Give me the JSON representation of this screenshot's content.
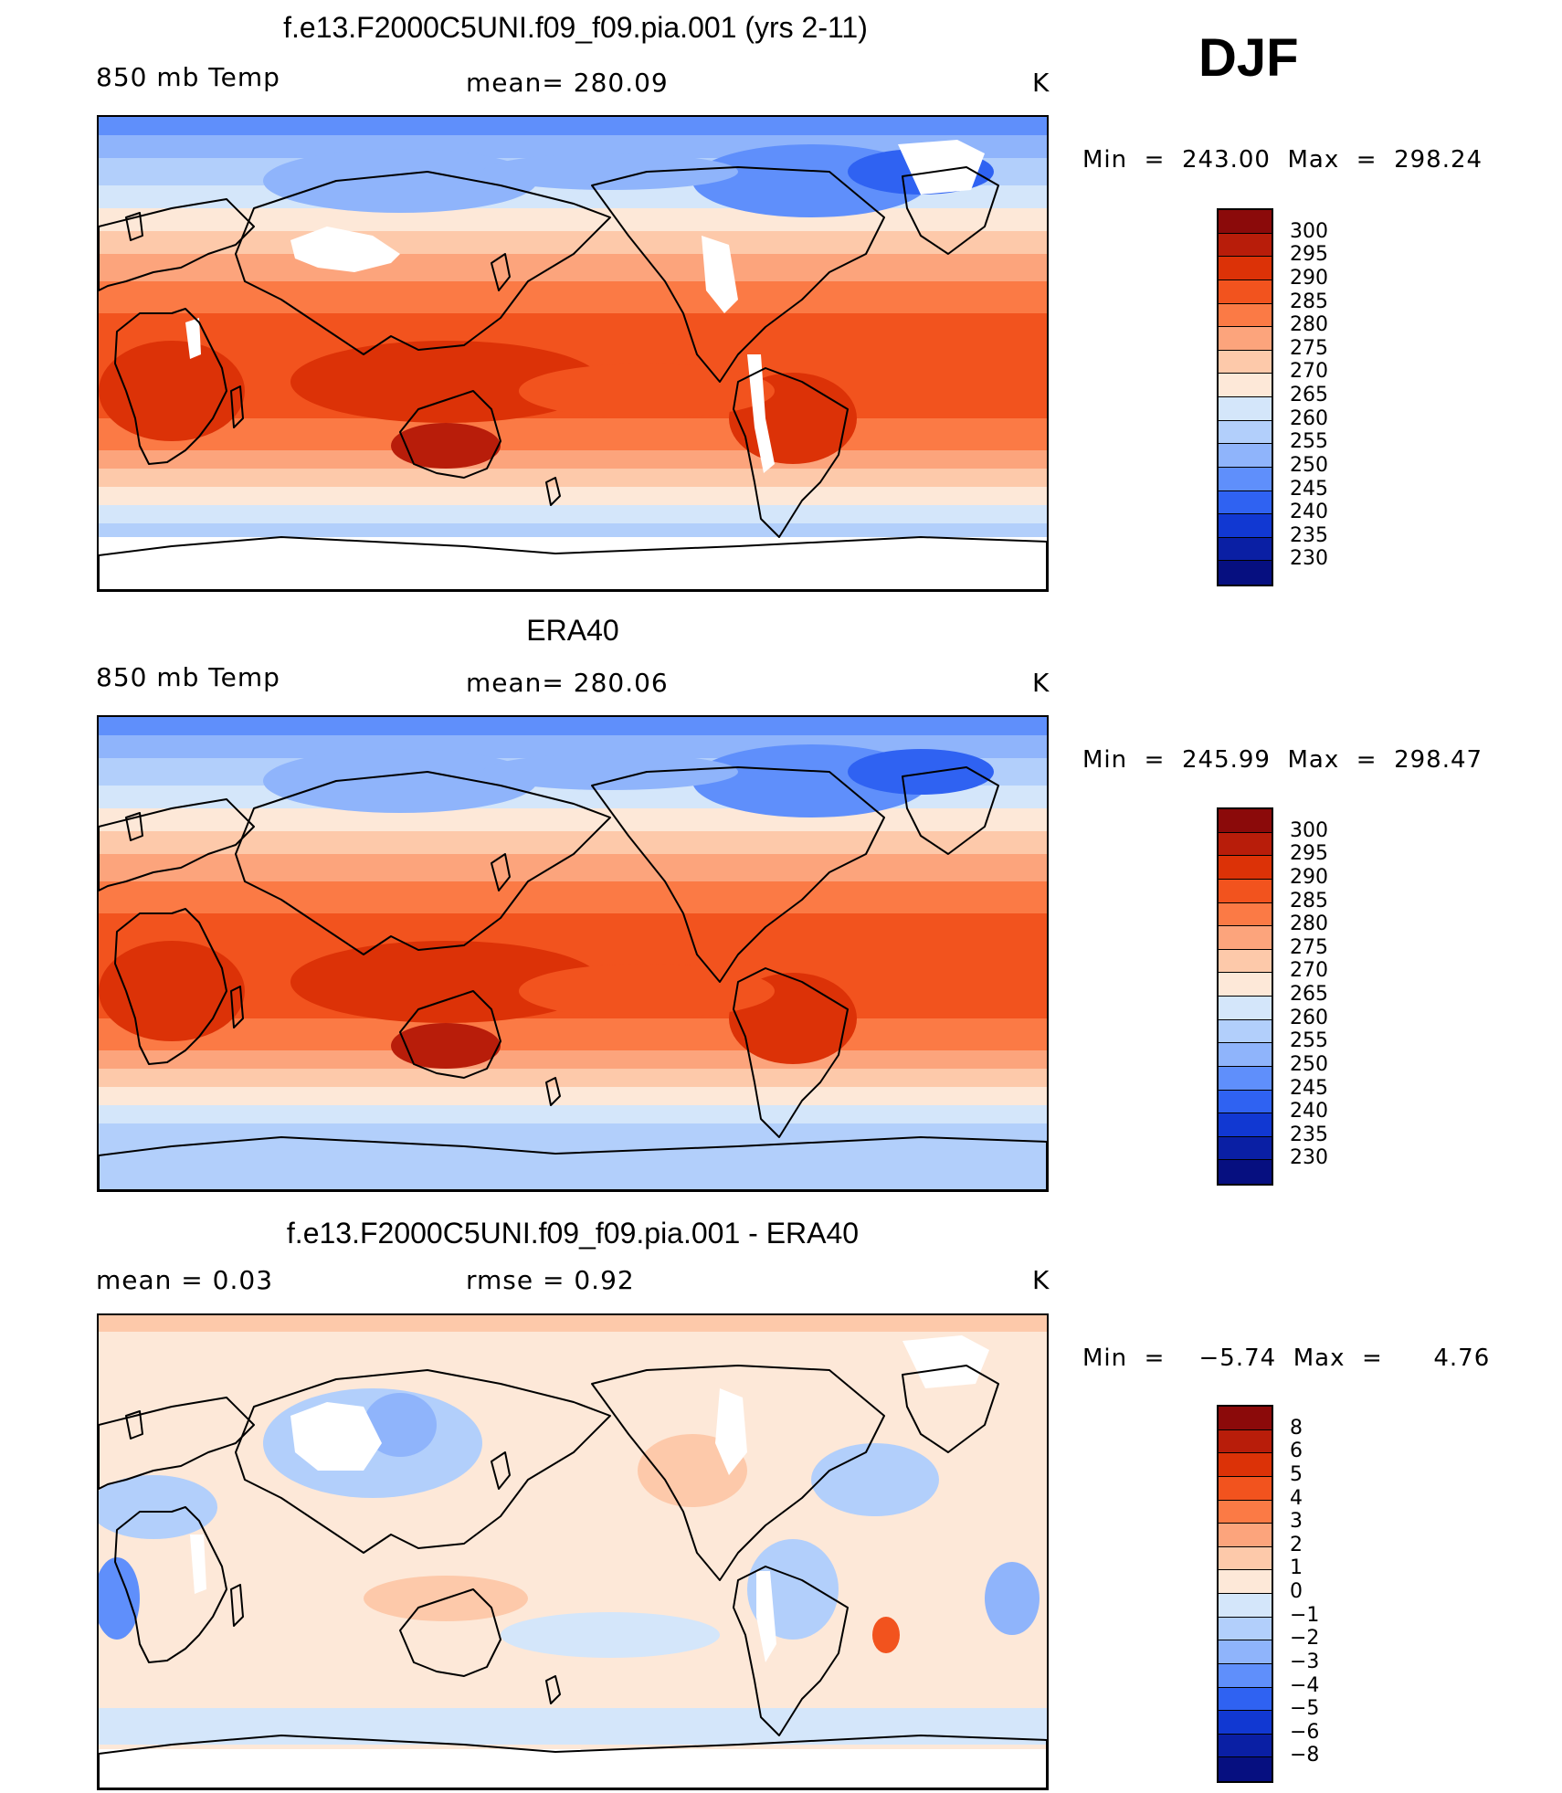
{
  "season": "DJF",
  "panels": [
    {
      "title": "f.e13.F2000C5UNI.f09_f09.pia.001 (yrs 2-11)",
      "left_label": "850 mb Temp",
      "center_label": "mean=  280.09",
      "unit": "K",
      "minmax": "Min  =  243.00  Max  =  298.24"
    },
    {
      "title": "ERA40",
      "left_label": "850 mb Temp",
      "center_label": "mean=  280.06",
      "unit": "K",
      "minmax": "Min  =  245.99  Max  =  298.47"
    },
    {
      "title": "f.e13.F2000C5UNI.f09_f09.pia.001 - ERA40",
      "left_label": "mean  =      0.03",
      "center_label": "rmse  =     0.92",
      "unit": "K",
      "minmax": "Min  =    −5.74  Max  =      4.76"
    }
  ],
  "chart_data": [
    {
      "type": "heatmap",
      "title": "f.e13.F2000C5UNI.f09_f09.pia.001 (yrs 2-11)",
      "variable": "850 mb Temp",
      "unit": "K",
      "mean": 280.09,
      "min": 243.0,
      "max": 298.24,
      "colorbar_levels": [
        300,
        295,
        290,
        285,
        280,
        275,
        270,
        265,
        260,
        255,
        250,
        245,
        240,
        235,
        230
      ],
      "colorbar_colors": [
        "#8b0a0a",
        "#b81d0a",
        "#dc3207",
        "#f2531e",
        "#fb7a45",
        "#fca47c",
        "#fdc9aa",
        "#fde8d8",
        "#d4e6fa",
        "#b2cffb",
        "#8fb4fb",
        "#5f8ffb",
        "#2f62f2",
        "#1138d2",
        "#0a1fa4",
        "#060f80"
      ]
    },
    {
      "type": "heatmap",
      "title": "ERA40",
      "variable": "850 mb Temp",
      "unit": "K",
      "mean": 280.06,
      "min": 245.99,
      "max": 298.47,
      "colorbar_levels": [
        300,
        295,
        290,
        285,
        280,
        275,
        270,
        265,
        260,
        255,
        250,
        245,
        240,
        235,
        230
      ],
      "colorbar_colors": [
        "#8b0a0a",
        "#b81d0a",
        "#dc3207",
        "#f2531e",
        "#fb7a45",
        "#fca47c",
        "#fdc9aa",
        "#fde8d8",
        "#d4e6fa",
        "#b2cffb",
        "#8fb4fb",
        "#5f8ffb",
        "#2f62f2",
        "#1138d2",
        "#0a1fa4",
        "#060f80"
      ]
    },
    {
      "type": "heatmap",
      "title": "f.e13.F2000C5UNI.f09_f09.pia.001 - ERA40",
      "unit": "K",
      "mean": 0.03,
      "rmse": 0.92,
      "min": -5.74,
      "max": 4.76,
      "colorbar_levels": [
        "8",
        "6",
        "5",
        "4",
        "3",
        "2",
        "1",
        "0",
        "−1",
        "−2",
        "−3",
        "−4",
        "−5",
        "−6",
        "−8"
      ],
      "colorbar_colors": [
        "#8b0a0a",
        "#b81d0a",
        "#dc3207",
        "#f2531e",
        "#fb7a45",
        "#fca47c",
        "#fdc9aa",
        "#fde8d8",
        "#d4e6fa",
        "#b2cffb",
        "#8fb4fb",
        "#5f8ffb",
        "#2f62f2",
        "#1138d2",
        "#0a1fa4",
        "#060f80"
      ]
    }
  ]
}
